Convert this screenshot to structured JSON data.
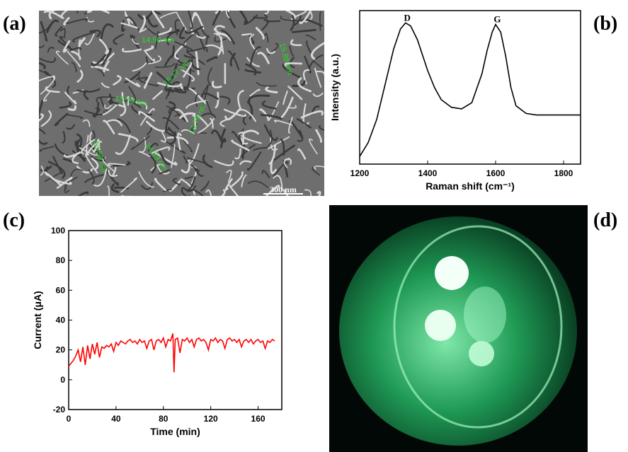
{
  "panel_labels": [
    "(a)",
    "(b)",
    "(c)",
    "(d)"
  ],
  "sem_image": {
    "annotations": [
      "14.90 nm",
      "15.88 nm",
      "15.17 nm",
      "13.79 nm",
      "14.79 nm",
      "13.50 nm",
      "14.33 nm"
    ],
    "scale_bar": "300 nm"
  },
  "chart_data": [
    {
      "type": "line",
      "xlabel": "Raman shift (cm⁻¹)",
      "ylabel": "Intensity (a.u.)",
      "color": "#000000",
      "x": [
        1200,
        1225,
        1250,
        1275,
        1300,
        1320,
        1335,
        1350,
        1370,
        1400,
        1420,
        1440,
        1470,
        1500,
        1530,
        1560,
        1575,
        1590,
        1600,
        1615,
        1630,
        1645,
        1660,
        1690,
        1720,
        1750,
        1800,
        1850
      ],
      "values": [
        0.05,
        0.14,
        0.29,
        0.52,
        0.75,
        0.88,
        0.92,
        0.9,
        0.81,
        0.61,
        0.5,
        0.42,
        0.37,
        0.36,
        0.4,
        0.59,
        0.74,
        0.86,
        0.91,
        0.86,
        0.7,
        0.5,
        0.38,
        0.33,
        0.32,
        0.32,
        0.32,
        0.32
      ],
      "xlim": [
        1200,
        1850
      ],
      "xticks": [
        1200,
        1400,
        1600,
        1800
      ],
      "ylim": [
        0,
        1
      ],
      "peak_labels": [
        {
          "label": "D",
          "x": 1340,
          "y": 0.92
        },
        {
          "label": "G",
          "x": 1605,
          "y": 0.91
        }
      ]
    },
    {
      "type": "line",
      "xlabel": "Time (min)",
      "ylabel": "Current (μA)",
      "color": "#ff0000",
      "x": [
        0,
        2,
        4,
        6,
        8,
        10,
        12,
        14,
        16,
        18,
        20,
        22,
        24,
        26,
        28,
        30,
        32,
        34,
        36,
        38,
        40,
        42,
        44,
        46,
        48,
        50,
        52,
        54,
        56,
        58,
        60,
        62,
        64,
        66,
        68,
        70,
        72,
        74,
        76,
        78,
        80,
        82,
        84,
        86,
        88,
        89,
        90,
        92,
        94,
        96,
        98,
        100,
        102,
        104,
        106,
        108,
        110,
        112,
        114,
        116,
        118,
        120,
        122,
        124,
        126,
        128,
        130,
        132,
        134,
        136,
        138,
        140,
        142,
        144,
        146,
        148,
        150,
        152,
        154,
        156,
        158,
        160,
        162,
        164,
        166,
        168,
        170,
        172,
        174
      ],
      "values": [
        9,
        11,
        13,
        16,
        20,
        12,
        22,
        10,
        23,
        14,
        24,
        17,
        25,
        15,
        22,
        21,
        23,
        22,
        24,
        19,
        25,
        23,
        26,
        25,
        24,
        26,
        27,
        25,
        26,
        24,
        27,
        25,
        26,
        21,
        26,
        27,
        20,
        26,
        27,
        25,
        28,
        22,
        27,
        26,
        31,
        5,
        27,
        28,
        18,
        27,
        26,
        28,
        25,
        27,
        22,
        27,
        28,
        26,
        27,
        25,
        20,
        27,
        26,
        28,
        25,
        27,
        26,
        21,
        27,
        28,
        26,
        27,
        25,
        27,
        22,
        26,
        27,
        25,
        27,
        24,
        26,
        27,
        25,
        26,
        21,
        26,
        25,
        27,
        26
      ],
      "xlim": [
        0,
        180
      ],
      "xticks": [
        0,
        40,
        80,
        120,
        160
      ],
      "ylim": [
        -20,
        100
      ],
      "yticks": [
        -20,
        0,
        20,
        40,
        60,
        80,
        100
      ]
    }
  ]
}
